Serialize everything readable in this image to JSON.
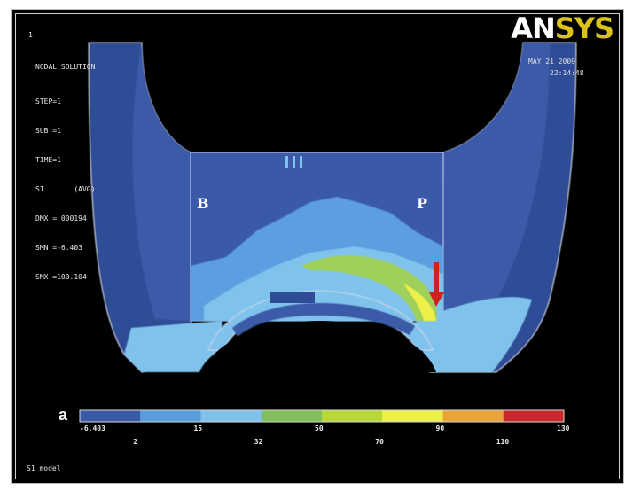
{
  "header": {
    "index": "1",
    "lines": [
      "NODAL SOLUTION",
      "STEP=1",
      "SUB =1",
      "TIME=1",
      "S1       (AVG)",
      "DMX =.000194",
      "SMN =-6.403",
      "SMX =100.104"
    ]
  },
  "logo": {
    "part1": "AN",
    "part2": "SYS"
  },
  "date": "MAY 21 2009",
  "time": "22:14:48",
  "labels": {
    "buccal": "B",
    "palatal": "P",
    "panel": "a"
  },
  "legend": {
    "colors": [
      "#3a5aa8",
      "#5b9ee0",
      "#7fc3ec",
      "#7fbe5a",
      "#b8d83a",
      "#eef04a",
      "#e8a43a",
      "#c8282c"
    ],
    "ticks": [
      "-6.403",
      "2",
      "15",
      "32",
      "50",
      "70",
      "90",
      "110",
      "130"
    ]
  },
  "footer": "S1 model",
  "annotation": {
    "arrow_color": "#d02020",
    "arrow_icon": "down-arrow-icon"
  }
}
